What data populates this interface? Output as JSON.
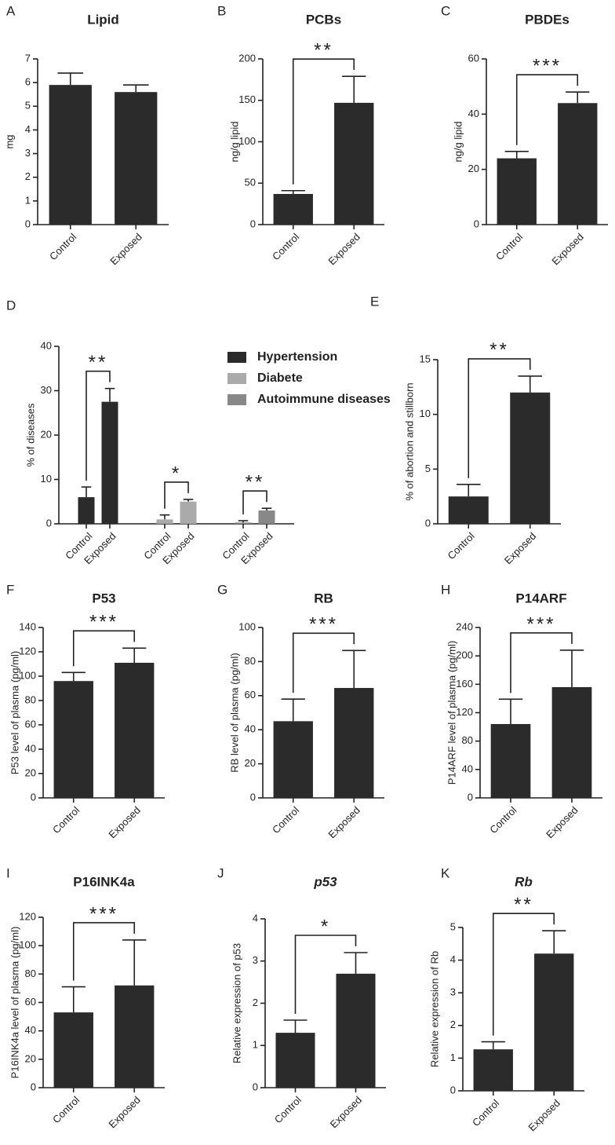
{
  "chart_data": [
    {
      "type": "bar",
      "label": "A",
      "title": "Lipid",
      "ylabel": "mg",
      "categories": [
        "Control",
        "Exposed"
      ],
      "values": [
        5.9,
        5.6
      ],
      "errors": [
        0.5,
        0.3
      ],
      "color": "#2b2b2b",
      "ylim": [
        0,
        7
      ],
      "yticks": [
        0,
        1,
        2,
        3,
        4,
        5,
        6,
        7
      ]
    },
    {
      "type": "bar",
      "label": "B",
      "title": "PCBs",
      "ylabel": "ng/g lipid",
      "categories": [
        "Control",
        "Exposed"
      ],
      "values": [
        37,
        147
      ],
      "errors": [
        4,
        32
      ],
      "color": "#2b2b2b",
      "ylim": [
        0,
        200
      ],
      "yticks": [
        0,
        50,
        100,
        150,
        200
      ],
      "significance": "**"
    },
    {
      "type": "bar",
      "label": "C",
      "title": "PBDEs",
      "ylabel": "ng/g lipid",
      "categories": [
        "Control",
        "Exposed"
      ],
      "values": [
        24,
        44
      ],
      "errors": [
        2.5,
        4
      ],
      "color": "#2b2b2b",
      "ylim": [
        0,
        60
      ],
      "yticks": [
        0,
        20,
        40,
        60
      ],
      "significance": "***"
    },
    {
      "type": "grouped_bar",
      "label": "D",
      "ylabel": "% of diseases",
      "categories": [
        "Control",
        "Exposed"
      ],
      "series": [
        {
          "name": "Hypertension",
          "color": "#2b2b2b",
          "values": [
            6,
            27.5
          ],
          "errors": [
            2.3,
            3
          ],
          "significance": "**"
        },
        {
          "name": "Diabete",
          "color": "#aaaaaa",
          "values": [
            1,
            5
          ],
          "errors": [
            1,
            0.5
          ],
          "significance": "*"
        },
        {
          "name": "Autoimmune diseases",
          "color": "#888888",
          "values": [
            0.3,
            3
          ],
          "errors": [
            0.4,
            0.5
          ],
          "significance": "**"
        }
      ],
      "ylim": [
        0,
        40
      ],
      "yticks": [
        0,
        10,
        20,
        30,
        40
      ]
    },
    {
      "type": "bar",
      "label": "E",
      "ylabel": "% of abortion and stillborn",
      "categories": [
        "Control",
        "Exposed"
      ],
      "values": [
        2.5,
        12
      ],
      "errors": [
        1.1,
        1.5
      ],
      "color": "#2b2b2b",
      "ylim": [
        0,
        15
      ],
      "yticks": [
        0,
        5,
        10,
        15
      ],
      "significance": "**"
    },
    {
      "type": "bar",
      "label": "F",
      "title": "P53",
      "ylabel": "P53 level of plasma (pg/ml)",
      "categories": [
        "Control",
        "Exposed"
      ],
      "values": [
        96,
        111
      ],
      "errors": [
        7,
        12
      ],
      "color": "#2b2b2b",
      "ylim": [
        0,
        140
      ],
      "yticks": [
        0,
        20,
        40,
        60,
        80,
        100,
        120,
        140
      ],
      "significance": "***"
    },
    {
      "type": "bar",
      "label": "G",
      "title": "RB",
      "ylabel": "RB level of plasma (pg/ml)",
      "categories": [
        "Control",
        "Exposed"
      ],
      "values": [
        45,
        64.5
      ],
      "errors": [
        13,
        22
      ],
      "color": "#2b2b2b",
      "ylim": [
        0,
        100
      ],
      "yticks": [
        0,
        20,
        40,
        60,
        80,
        100
      ],
      "significance": "***"
    },
    {
      "type": "bar",
      "label": "H",
      "title": "P14ARF",
      "ylabel": "P14ARF level of plasma (pg/ml)",
      "categories": [
        "Control",
        "Exposed"
      ],
      "values": [
        104,
        156
      ],
      "errors": [
        35,
        52
      ],
      "color": "#2b2b2b",
      "ylim": [
        0,
        240
      ],
      "yticks": [
        0,
        40,
        80,
        120,
        160,
        200,
        240
      ],
      "significance": "***"
    },
    {
      "type": "bar",
      "label": "I",
      "title": "P16INK4a",
      "ylabel": "P16INK4a level of plasma (pg/ml)",
      "categories": [
        "Control",
        "Exposed"
      ],
      "values": [
        53,
        72
      ],
      "errors": [
        18,
        32
      ],
      "color": "#2b2b2b",
      "ylim": [
        0,
        120
      ],
      "yticks": [
        0,
        20,
        40,
        60,
        80,
        100,
        120
      ],
      "significance": "***"
    },
    {
      "type": "bar",
      "label": "J",
      "title": "p53",
      "title_italic": true,
      "ylabel": "Relative expression of p53",
      "categories": [
        "Control",
        "Exposed"
      ],
      "values": [
        1.3,
        2.7
      ],
      "errors": [
        0.3,
        0.5
      ],
      "color": "#2b2b2b",
      "ylim": [
        0,
        4
      ],
      "yticks": [
        0,
        1,
        2,
        3,
        4
      ],
      "significance": "*"
    },
    {
      "type": "bar",
      "label": "K",
      "title": "Rb",
      "title_italic": true,
      "ylabel": "Relative expression of Rb",
      "categories": [
        "Control",
        "Exposed"
      ],
      "values": [
        1.27,
        4.2
      ],
      "errors": [
        0.23,
        0.7
      ],
      "color": "#2b2b2b",
      "ylim": [
        0,
        5
      ],
      "yticks": [
        0,
        1,
        2,
        3,
        4,
        5
      ],
      "significance": "**"
    }
  ]
}
